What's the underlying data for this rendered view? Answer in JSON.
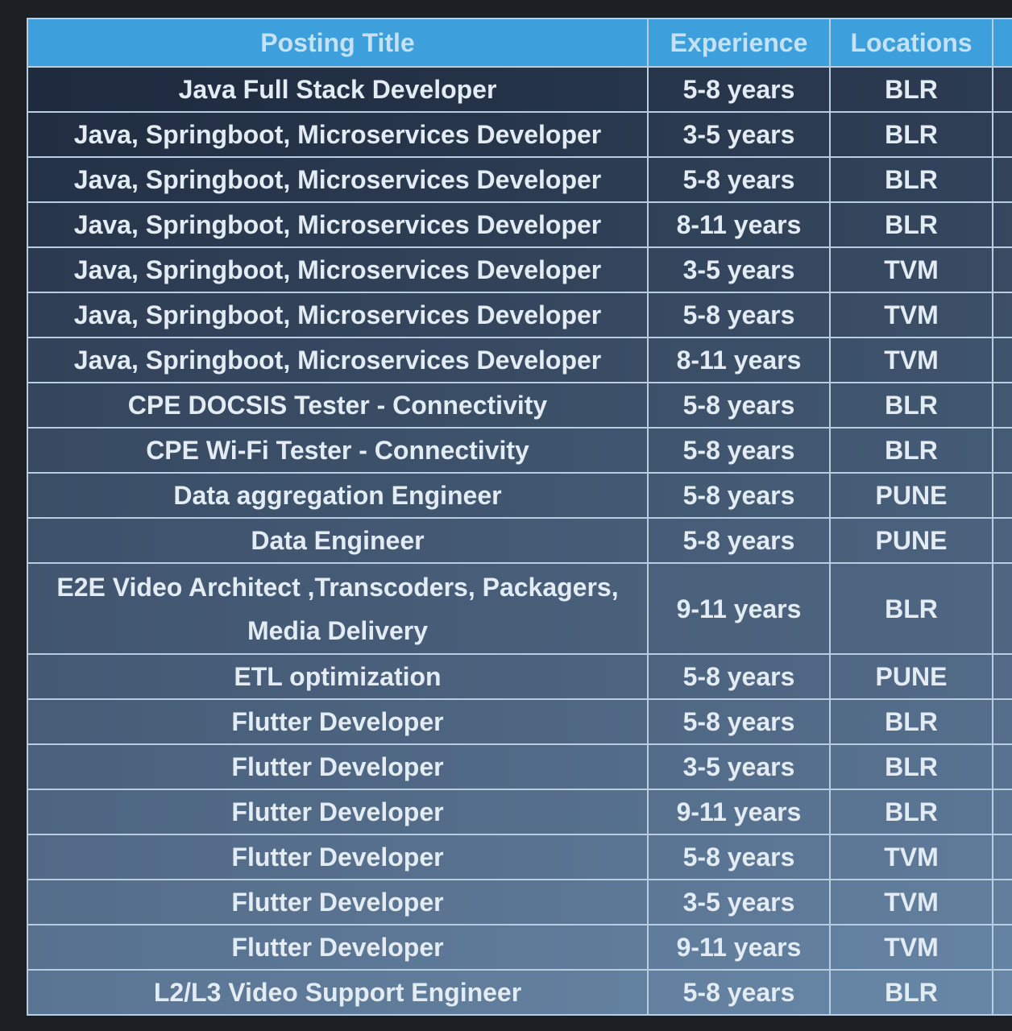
{
  "table": {
    "header": [
      "Posting Title",
      "Experience",
      "Locations"
    ],
    "rows": [
      [
        "Java Full Stack Developer",
        "5-8 years",
        "BLR"
      ],
      [
        "Java, Springboot, Microservices Developer",
        "3-5 years",
        "BLR"
      ],
      [
        "Java, Springboot, Microservices Developer",
        "5-8 years",
        "BLR"
      ],
      [
        "Java, Springboot, Microservices Developer",
        "8-11 years",
        "BLR"
      ],
      [
        "Java, Springboot, Microservices Developer",
        "3-5 years",
        "TVM"
      ],
      [
        "Java, Springboot, Microservices Developer",
        "5-8 years",
        "TVM"
      ],
      [
        "Java, Springboot, Microservices Developer",
        "8-11 years",
        "TVM"
      ],
      [
        "CPE DOCSIS Tester - Connectivity",
        "5-8 years",
        "BLR"
      ],
      [
        "CPE Wi-Fi Tester - Connectivity",
        "5-8 years",
        "BLR"
      ],
      [
        "Data aggregation Engineer",
        "5-8 years",
        "PUNE"
      ],
      [
        "Data Engineer",
        "5-8 years",
        "PUNE"
      ],
      [
        "E2E Video Architect ,Transcoders, Packagers, Media Delivery",
        "9-11 years",
        "BLR"
      ],
      [
        "ETL optimization",
        "5-8 years",
        "PUNE"
      ],
      [
        "Flutter Developer",
        "5-8 years",
        "BLR"
      ],
      [
        "Flutter Developer",
        "3-5 years",
        "BLR"
      ],
      [
        "Flutter Developer",
        "9-11 years",
        "BLR"
      ],
      [
        "Flutter Developer",
        "5-8 years",
        "TVM"
      ],
      [
        "Flutter Developer",
        "3-5 years",
        "TVM"
      ],
      [
        "Flutter Developer",
        "9-11 years",
        "TVM"
      ],
      [
        "L2/L3 Video Support Engineer",
        "5-8 years",
        "BLR"
      ]
    ]
  }
}
